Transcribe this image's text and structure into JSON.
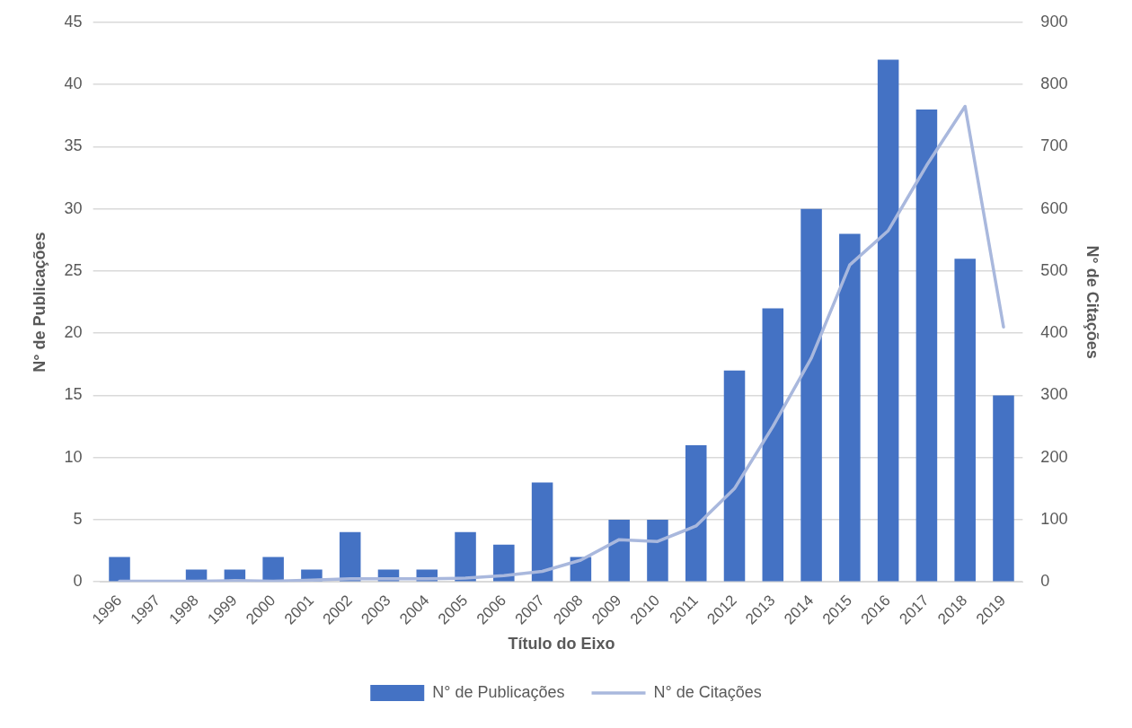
{
  "chart_data": {
    "type": "bar",
    "xlabel": "Título do Eixo",
    "ylabel": "N° de Publicações",
    "y2label": "N° de Citações",
    "categories": [
      "1996",
      "1997",
      "1998",
      "1999",
      "2000",
      "2001",
      "2002",
      "2003",
      "2004",
      "2005",
      "2006",
      "2007",
      "2008",
      "2009",
      "2010",
      "2011",
      "2012",
      "2013",
      "2014",
      "2015",
      "2016",
      "2017",
      "2018",
      "2019"
    ],
    "series": [
      {
        "name": "N° de Publicações",
        "color": "#4472c4",
        "values": [
          2,
          0,
          1,
          1,
          2,
          1,
          4,
          1,
          1,
          4,
          3,
          8,
          2,
          5,
          5,
          11,
          17,
          22,
          30,
          28,
          42,
          38,
          26,
          15
        ]
      },
      {
        "name": "N° de Citações",
        "type": "line",
        "axis": "y2",
        "color": "#a9b8dd",
        "values": [
          1,
          1,
          1,
          2,
          1,
          3,
          5,
          5,
          5,
          6,
          10,
          17,
          35,
          68,
          65,
          90,
          150,
          250,
          360,
          510,
          565,
          670,
          765,
          410
        ]
      }
    ],
    "ylim": [
      0,
      45
    ],
    "yticks": [
      0,
      5,
      10,
      15,
      20,
      25,
      30,
      35,
      40,
      45
    ],
    "y2lim": [
      0,
      900
    ],
    "y2ticks": [
      0,
      100,
      200,
      300,
      400,
      500,
      600,
      700,
      800,
      900
    ],
    "grid": "y",
    "legend": "bottom",
    "marker": "none"
  }
}
